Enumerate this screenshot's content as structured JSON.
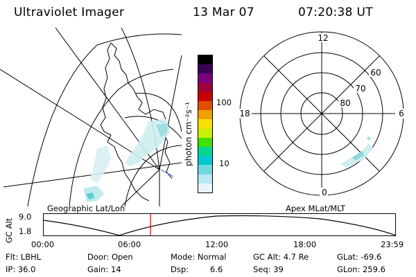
{
  "header": {
    "title": "Ultraviolet Imager",
    "date": "13 Mar 07",
    "time": "07:20:38 UT"
  },
  "geo_map": {
    "label": "Geographic Lat/Lon"
  },
  "colorbar": {
    "unit_label": "photon cm⁻²s⁻¹",
    "ticks": [
      "100",
      "10"
    ],
    "colors": [
      "#000000",
      "#3a0058",
      "#7a0080",
      "#a0003c",
      "#c80000",
      "#e05000",
      "#f0a000",
      "#f8e000",
      "#c8f000",
      "#40e000",
      "#00d890",
      "#00c8d0",
      "#70d8e0",
      "#b8e8f0",
      "#e8f4f8"
    ]
  },
  "polar_plot": {
    "label": "Apex MLat/MLT",
    "mlt_labels": {
      "top": "12",
      "bottom": "0",
      "left": "18",
      "right": "6"
    },
    "lat_labels": [
      "60",
      "70",
      "80"
    ]
  },
  "altitude_plot": {
    "ylabel": "GC Alt",
    "yticks": [
      "9.0",
      "1.8"
    ],
    "xticks": [
      "00:00",
      "06:00",
      "12:00",
      "18:00",
      "23:59"
    ],
    "current_marker_time": "07:20"
  },
  "info": {
    "filter": "Flt: LBHL",
    "ip": "IP: 36.0",
    "door": "Door: Open",
    "gain": "Gain: 14",
    "mode": "Mode: Normal",
    "dsp_label": "Dsp:",
    "dsp_value": "6.6",
    "gc_alt": "GC Alt: 4.7 Re",
    "seq": "Seq: 39",
    "glat": "GLat: -69.6",
    "glon": "GLon: 259.6"
  },
  "colors": {
    "marker": "#dd0000",
    "aurora": "#a8e0e4"
  }
}
